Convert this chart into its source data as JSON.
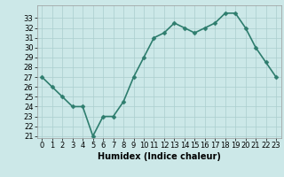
{
  "x": [
    0,
    1,
    2,
    3,
    4,
    5,
    6,
    7,
    8,
    9,
    10,
    11,
    12,
    13,
    14,
    15,
    16,
    17,
    18,
    19,
    20,
    21,
    22,
    23
  ],
  "y": [
    27,
    26,
    25,
    24,
    24,
    21,
    23,
    23,
    24.5,
    27,
    29,
    31,
    31.5,
    32.5,
    32,
    31.5,
    32,
    32.5,
    33.5,
    33.5,
    32,
    30,
    28.5,
    27
  ],
  "line_color": "#2e7d6e",
  "marker_color": "#2e7d6e",
  "bg_color": "#cce8e8",
  "grid_color": "#aacece",
  "xlabel": "Humidex (Indice chaleur)",
  "ylim": [
    21,
    34
  ],
  "xlim": [
    -0.5,
    23.5
  ],
  "yticks": [
    21,
    22,
    23,
    24,
    25,
    26,
    27,
    28,
    29,
    30,
    31,
    32,
    33
  ],
  "xticks": [
    0,
    1,
    2,
    3,
    4,
    5,
    6,
    7,
    8,
    9,
    10,
    11,
    12,
    13,
    14,
    15,
    16,
    17,
    18,
    19,
    20,
    21,
    22,
    23
  ],
  "xlabel_fontsize": 7,
  "tick_fontsize": 6,
  "linewidth": 1.2,
  "markersize": 2.5
}
